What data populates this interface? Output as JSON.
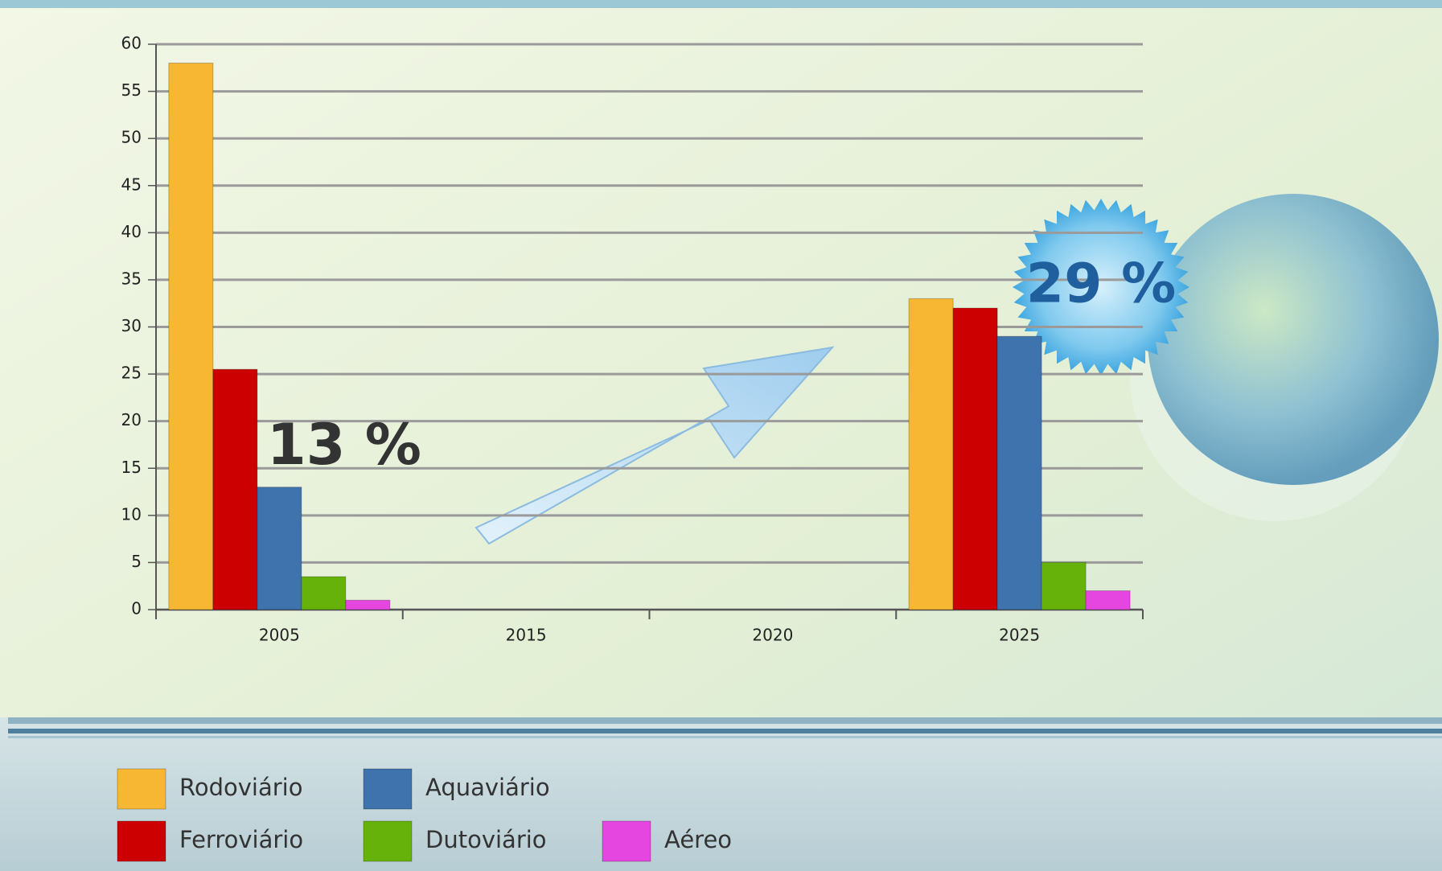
{
  "chart_data": {
    "type": "bar",
    "categories": [
      "2005",
      "2015",
      "2020",
      "2025"
    ],
    "series": [
      {
        "name": "Rodoviário",
        "color": "#f7b733",
        "values": [
          58,
          null,
          null,
          33
        ]
      },
      {
        "name": "Ferroviário",
        "color": "#cc0000",
        "values": [
          25.5,
          null,
          null,
          32
        ]
      },
      {
        "name": "Aquaviário",
        "color": "#3f73ad",
        "values": [
          13,
          null,
          null,
          29
        ],
        "value_labels": [
          "13 %",
          null,
          null,
          "29 %"
        ]
      },
      {
        "name": "Dutoviário",
        "color": "#66b20a",
        "values": [
          3.5,
          null,
          null,
          5
        ]
      },
      {
        "name": "Aéreo",
        "color": "#e646e0",
        "values": [
          1,
          null,
          null,
          2
        ]
      }
    ],
    "ylim": [
      0,
      60
    ],
    "yticks": [
      0,
      5,
      10,
      15,
      20,
      25,
      30,
      35,
      40,
      45,
      50,
      55,
      60
    ],
    "grid": true
  }
}
